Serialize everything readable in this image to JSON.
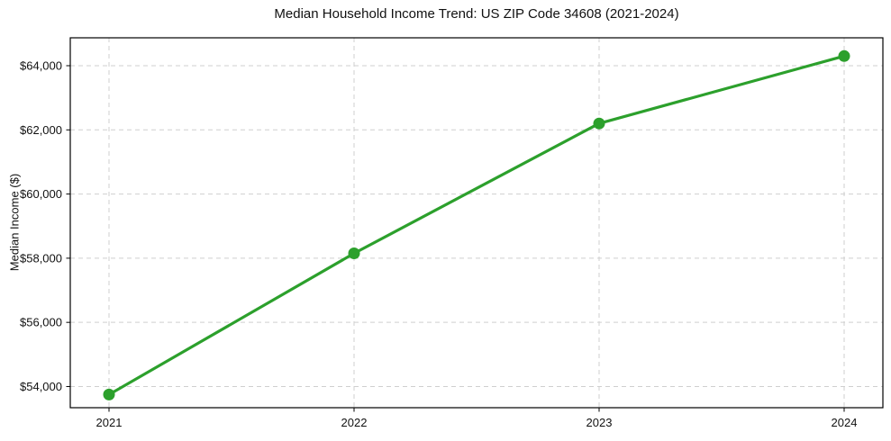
{
  "chart_data": {
    "type": "line",
    "title": "Median Household Income Trend: US ZIP Code 34608 (2021-2024)",
    "xlabel": "",
    "ylabel": "Median Income ($)",
    "categories": [
      "2021",
      "2022",
      "2023",
      "2024"
    ],
    "series": [
      {
        "values": [
          53750,
          58150,
          62200,
          64300
        ],
        "color": "#2ca02c",
        "marker": "circle"
      }
    ],
    "y_ticks": [
      {
        "value": 54000,
        "label": "$54,000"
      },
      {
        "value": 56000,
        "label": "$56,000"
      },
      {
        "value": 58000,
        "label": "$58,000"
      },
      {
        "value": 60000,
        "label": "$60,000"
      },
      {
        "value": 62000,
        "label": "$62,000"
      },
      {
        "value": 64000,
        "label": "$64,000"
      }
    ],
    "ylim": [
      53340,
      64870
    ],
    "grid": {
      "show": true,
      "style": "dashed",
      "color": "#cfcfcf"
    },
    "legend_position": "none",
    "axis_color": "#000000",
    "text_color": "#111111",
    "plot_background": "#ffffff"
  }
}
